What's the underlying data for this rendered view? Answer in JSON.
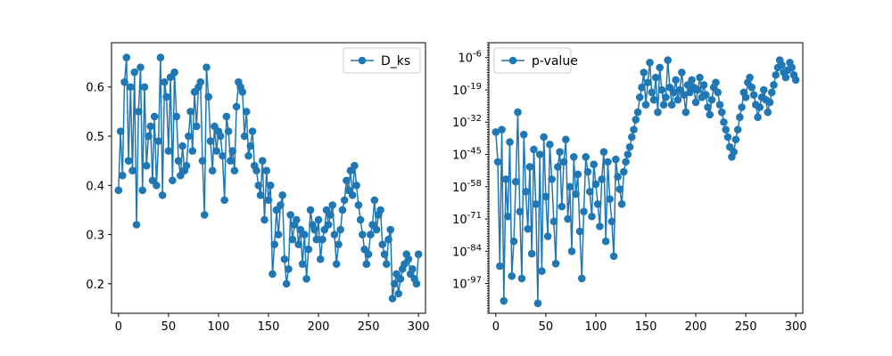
{
  "chart_data": [
    {
      "type": "line",
      "title": "",
      "xlabel": "",
      "ylabel": "",
      "xlim": [
        -7,
        307
      ],
      "ylim": [
        0.14,
        0.69
      ],
      "xticks": [
        0,
        50,
        100,
        150,
        200,
        250,
        300
      ],
      "yticks": [
        0.2,
        0.3,
        0.4,
        0.5,
        0.6
      ],
      "ytick_labels": [
        "0.2",
        "0.3",
        "0.4",
        "0.5",
        "0.6"
      ],
      "grid": false,
      "legend_position": "upper right",
      "series": [
        {
          "name": "D_ks",
          "color": "#1f77b4",
          "marker": "circle",
          "x": [
            0,
            2,
            4,
            6,
            8,
            10,
            12,
            14,
            16,
            18,
            20,
            22,
            24,
            26,
            28,
            30,
            32,
            34,
            36,
            38,
            40,
            42,
            44,
            46,
            48,
            50,
            52,
            54,
            56,
            58,
            60,
            62,
            64,
            66,
            68,
            70,
            72,
            74,
            76,
            78,
            80,
            82,
            84,
            86,
            88,
            90,
            92,
            94,
            96,
            98,
            100,
            102,
            104,
            106,
            108,
            110,
            112,
            114,
            116,
            118,
            120,
            122,
            124,
            126,
            128,
            130,
            132,
            134,
            136,
            138,
            140,
            142,
            144,
            146,
            148,
            150,
            152,
            154,
            156,
            158,
            160,
            162,
            164,
            166,
            168,
            170,
            172,
            174,
            176,
            178,
            180,
            182,
            184,
            186,
            188,
            190,
            192,
            194,
            196,
            198,
            200,
            202,
            204,
            206,
            208,
            210,
            212,
            214,
            216,
            218,
            220,
            222,
            224,
            226,
            228,
            230,
            232,
            234,
            236,
            238,
            240,
            242,
            244,
            246,
            248,
            250,
            252,
            254,
            256,
            258,
            260,
            262,
            264,
            266,
            268,
            270,
            272,
            274,
            276,
            278,
            280,
            282,
            284,
            286,
            288,
            290,
            292,
            294,
            296,
            298,
            300
          ],
          "values": [
            0.39,
            0.51,
            0.42,
            0.61,
            0.66,
            0.45,
            0.6,
            0.43,
            0.63,
            0.32,
            0.55,
            0.64,
            0.39,
            0.6,
            0.44,
            0.5,
            0.52,
            0.41,
            0.54,
            0.4,
            0.49,
            0.66,
            0.38,
            0.61,
            0.58,
            0.47,
            0.62,
            0.41,
            0.63,
            0.54,
            0.45,
            0.42,
            0.48,
            0.43,
            0.44,
            0.5,
            0.55,
            0.47,
            0.59,
            0.52,
            0.6,
            0.61,
            0.45,
            0.34,
            0.64,
            0.58,
            0.49,
            0.43,
            0.52,
            0.47,
            0.51,
            0.5,
            0.46,
            0.37,
            0.54,
            0.51,
            0.45,
            0.47,
            0.43,
            0.56,
            0.61,
            0.6,
            0.59,
            0.5,
            0.55,
            0.46,
            0.48,
            0.51,
            0.44,
            0.43,
            0.4,
            0.38,
            0.45,
            0.33,
            0.43,
            0.37,
            0.4,
            0.22,
            0.28,
            0.35,
            0.3,
            0.36,
            0.38,
            0.25,
            0.2,
            0.23,
            0.34,
            0.29,
            0.32,
            0.33,
            0.28,
            0.31,
            0.24,
            0.3,
            0.21,
            0.27,
            0.35,
            0.32,
            0.31,
            0.29,
            0.33,
            0.25,
            0.29,
            0.31,
            0.35,
            0.32,
            0.34,
            0.36,
            0.3,
            0.24,
            0.28,
            0.31,
            0.35,
            0.37,
            0.41,
            0.39,
            0.43,
            0.38,
            0.44,
            0.4,
            0.36,
            0.33,
            0.3,
            0.27,
            0.24,
            0.26,
            0.3,
            0.32,
            0.37,
            0.31,
            0.34,
            0.35,
            0.28,
            0.26,
            0.24,
            0.29,
            0.31,
            0.17,
            0.2,
            0.22,
            0.18,
            0.21,
            0.23,
            0.24,
            0.26,
            0.25,
            0.22,
            0.23,
            0.21,
            0.2,
            0.26
          ]
        }
      ]
    },
    {
      "type": "line",
      "title": "",
      "xlabel": "",
      "ylabel": "",
      "yscale": "log",
      "xlim": [
        -7,
        307
      ],
      "ylim_exponent": [
        -109,
        0
      ],
      "xticks": [
        0,
        50,
        100,
        150,
        200,
        250,
        300
      ],
      "yticks_exponent": [
        -97,
        -84,
        -71,
        -58,
        -45,
        -32,
        -19,
        -6
      ],
      "ytick_base": "10",
      "grid": false,
      "legend_position": "upper left",
      "series": [
        {
          "name": "p-value",
          "color": "#1f77b4",
          "marker": "circle",
          "x": [
            0,
            2,
            4,
            6,
            8,
            10,
            12,
            14,
            16,
            18,
            20,
            22,
            24,
            26,
            28,
            30,
            32,
            34,
            36,
            38,
            40,
            42,
            44,
            46,
            48,
            50,
            52,
            54,
            56,
            58,
            60,
            62,
            64,
            66,
            68,
            70,
            72,
            74,
            76,
            78,
            80,
            82,
            84,
            86,
            88,
            90,
            92,
            94,
            96,
            98,
            100,
            102,
            104,
            106,
            108,
            110,
            112,
            114,
            116,
            118,
            120,
            122,
            124,
            126,
            128,
            130,
            132,
            134,
            136,
            138,
            140,
            142,
            144,
            146,
            148,
            150,
            152,
            154,
            156,
            158,
            160,
            162,
            164,
            166,
            168,
            170,
            172,
            174,
            176,
            178,
            180,
            182,
            184,
            186,
            188,
            190,
            192,
            194,
            196,
            198,
            200,
            202,
            204,
            206,
            208,
            210,
            212,
            214,
            216,
            218,
            220,
            222,
            224,
            226,
            228,
            230,
            232,
            234,
            236,
            238,
            240,
            242,
            244,
            246,
            248,
            250,
            252,
            254,
            256,
            258,
            260,
            262,
            264,
            266,
            268,
            270,
            272,
            274,
            276,
            278,
            280,
            282,
            284,
            286,
            288,
            290,
            292,
            294,
            296,
            298,
            300
          ],
          "values_exponent": [
            -36,
            -48,
            -90,
            -35,
            -104,
            -55,
            -70,
            -40,
            -94,
            -80,
            -56,
            -28,
            -68,
            -95,
            -37,
            -60,
            -75,
            -50,
            -85,
            -43,
            -65,
            -105,
            -45,
            -92,
            -38,
            -62,
            -78,
            -41,
            -55,
            -72,
            -89,
            -50,
            -44,
            -66,
            -48,
            -39,
            -71,
            -58,
            -84,
            -46,
            -61,
            -53,
            -76,
            -95,
            -68,
            -46,
            -52,
            -60,
            -70,
            -49,
            -57,
            -65,
            -74,
            -55,
            -44,
            -80,
            -48,
            -63,
            -72,
            -86,
            -47,
            -54,
            -59,
            -65,
            -52,
            -48,
            -45,
            -42,
            -38,
            -35,
            -31,
            -28,
            -22,
            -18,
            -12,
            -25,
            -16,
            -8,
            -20,
            -23,
            -14,
            -28,
            -10,
            -19,
            -25,
            -22,
            -7,
            -18,
            -25,
            -20,
            -15,
            -23,
            -19,
            -12,
            -21,
            -28,
            -17,
            -20,
            -15,
            -18,
            -24,
            -19,
            -14,
            -22,
            -17,
            -21,
            -26,
            -29,
            -23,
            -18,
            -16,
            -20,
            -25,
            -28,
            -32,
            -35,
            -38,
            -42,
            -46,
            -44,
            -39,
            -35,
            -30,
            -26,
            -20,
            -22,
            -16,
            -14,
            -18,
            -21,
            -25,
            -30,
            -26,
            -22,
            -19,
            -23,
            -28,
            -24,
            -20,
            -17,
            -13,
            -10,
            -7,
            -9,
            -12,
            -14,
            -11,
            -8,
            -10,
            -13,
            -15
          ]
        }
      ]
    }
  ]
}
